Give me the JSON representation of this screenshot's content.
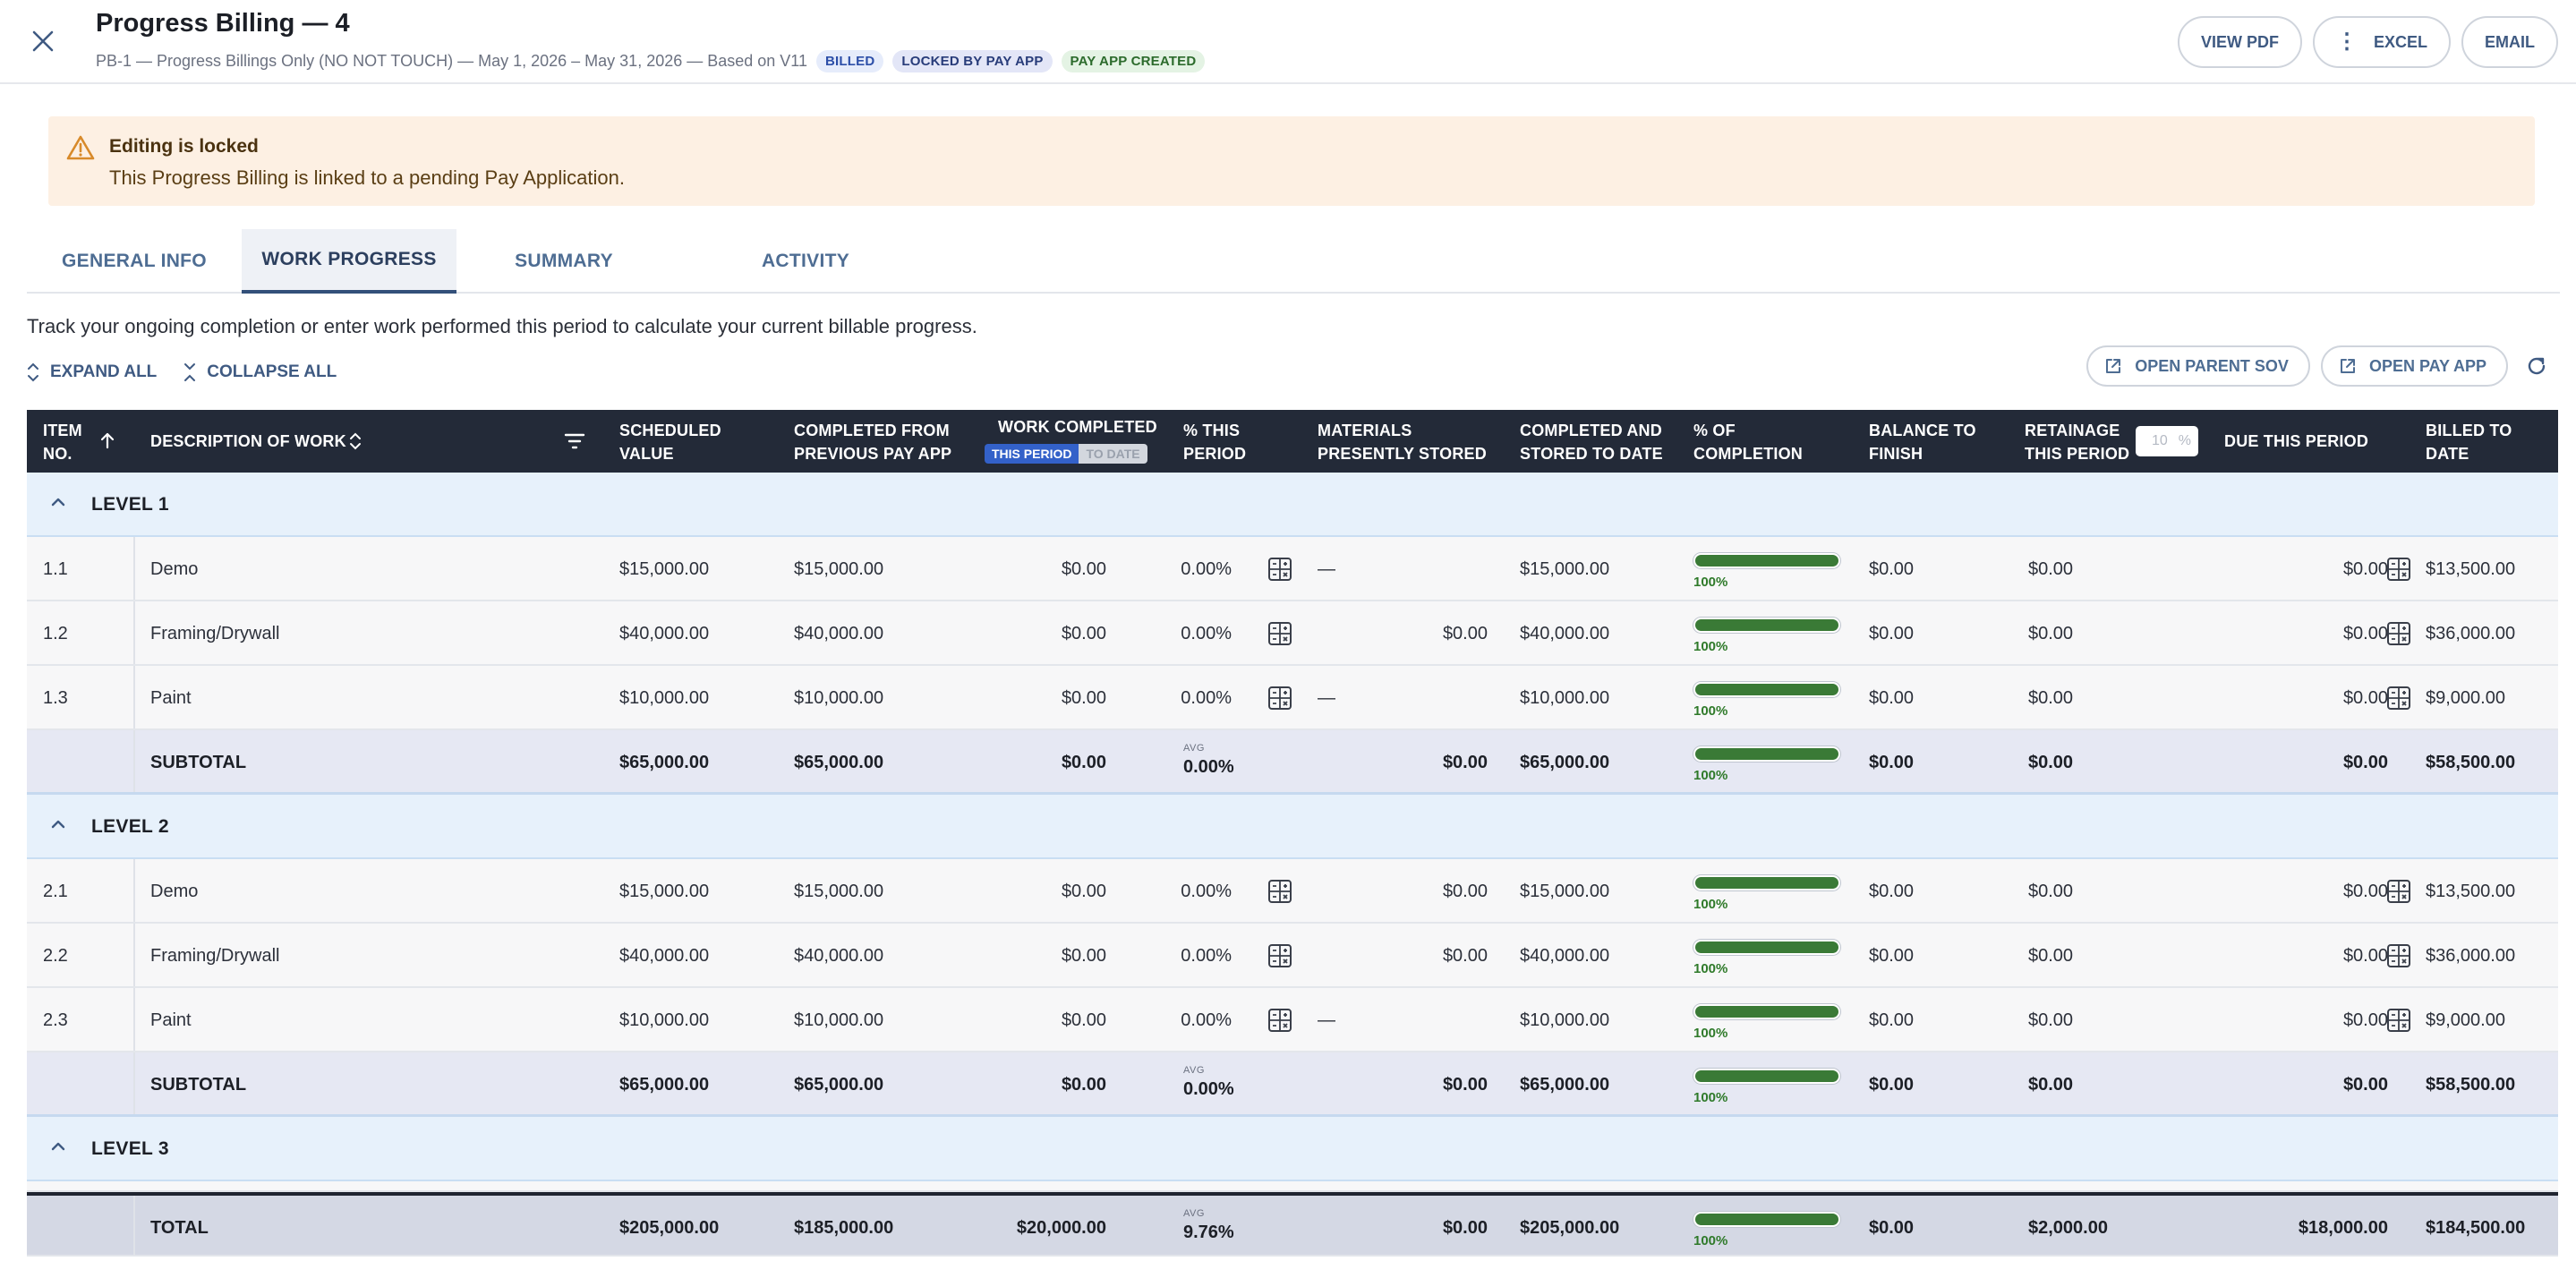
{
  "header": {
    "title": "Progress Billing — 4",
    "subtitle": "PB-1 — Progress Billings Only (NO NOT TOUCH) — May 1, 2026 – May 31, 2026 — Based on V11",
    "badges": [
      "BILLED",
      "LOCKED BY PAY APP",
      "PAY APP CREATED"
    ],
    "actions": {
      "view_pdf": "VIEW PDF",
      "excel": "EXCEL",
      "email": "EMAIL"
    }
  },
  "alert": {
    "title": "Editing is locked",
    "text": "This Progress Billing is linked to a pending Pay Application."
  },
  "tabs": [
    "GENERAL INFO",
    "WORK PROGRESS",
    "SUMMARY",
    "ACTIVITY"
  ],
  "active_tab": "WORK PROGRESS",
  "description": "Track your ongoing completion or enter work performed this period to calculate your current billable progress.",
  "controls": {
    "expand_all": "EXPAND ALL",
    "collapse_all": "COLLAPSE ALL",
    "open_parent_sov": "OPEN PARENT SOV",
    "open_pay_app": "OPEN PAY APP"
  },
  "columns": {
    "item": "ITEM NO.",
    "description": "DESCRIPTION OF WORK",
    "scheduled": "SCHEDULED VALUE",
    "completed_prev": "COMPLETED FROM PREVIOUS PAY APP",
    "work_completed": "WORK COMPLETED",
    "toggle_this": "THIS PERIOD",
    "toggle_to_date": "TO DATE",
    "pct_this": "% THIS PERIOD",
    "materials": "MATERIALS PRESENTLY STORED",
    "completed_stored": "COMPLETED AND STORED TO DATE",
    "pct_completion": "% OF COMPLETION",
    "balance": "BALANCE TO FINISH",
    "retainage": "RETAINAGE THIS PERIOD",
    "retainage_value": "10",
    "retainage_unit": "%",
    "due": "DUE THIS PERIOD",
    "billed": "BILLED TO DATE"
  },
  "levels": [
    {
      "name": "LEVEL 1",
      "rows": [
        {
          "item": "1.1",
          "desc": "Demo",
          "scheduled": "$15,000.00",
          "prev": "$15,000.00",
          "work": "$0.00",
          "pct": "0.00%",
          "materials": "—",
          "stored": "$15,000.00",
          "completion_pct": 100,
          "completion": "100%",
          "balance": "$0.00",
          "retainage": "$0.00",
          "due": "$0.00",
          "billed": "$13,500.00"
        },
        {
          "item": "1.2",
          "desc": "Framing/Drywall",
          "scheduled": "$40,000.00",
          "prev": "$40,000.00",
          "work": "$0.00",
          "pct": "0.00%",
          "materials": "$0.00",
          "stored": "$40,000.00",
          "completion_pct": 100,
          "completion": "100%",
          "balance": "$0.00",
          "retainage": "$0.00",
          "due": "$0.00",
          "billed": "$36,000.00"
        },
        {
          "item": "1.3",
          "desc": "Paint",
          "scheduled": "$10,000.00",
          "prev": "$10,000.00",
          "work": "$0.00",
          "pct": "0.00%",
          "materials": "—",
          "stored": "$10,000.00",
          "completion_pct": 100,
          "completion": "100%",
          "balance": "$0.00",
          "retainage": "$0.00",
          "due": "$0.00",
          "billed": "$9,000.00"
        }
      ],
      "subtotal": {
        "label": "SUBTOTAL",
        "scheduled": "$65,000.00",
        "prev": "$65,000.00",
        "work": "$0.00",
        "avg_label": "AVG",
        "pct": "0.00%",
        "materials": "$0.00",
        "stored": "$65,000.00",
        "completion_pct": 100,
        "completion": "100%",
        "balance": "$0.00",
        "retainage": "$0.00",
        "due": "$0.00",
        "billed": "$58,500.00"
      }
    },
    {
      "name": "LEVEL 2",
      "rows": [
        {
          "item": "2.1",
          "desc": "Demo",
          "scheduled": "$15,000.00",
          "prev": "$15,000.00",
          "work": "$0.00",
          "pct": "0.00%",
          "materials": "$0.00",
          "stored": "$15,000.00",
          "completion_pct": 100,
          "completion": "100%",
          "balance": "$0.00",
          "retainage": "$0.00",
          "due": "$0.00",
          "billed": "$13,500.00"
        },
        {
          "item": "2.2",
          "desc": "Framing/Drywall",
          "scheduled": "$40,000.00",
          "prev": "$40,000.00",
          "work": "$0.00",
          "pct": "0.00%",
          "materials": "$0.00",
          "stored": "$40,000.00",
          "completion_pct": 100,
          "completion": "100%",
          "balance": "$0.00",
          "retainage": "$0.00",
          "due": "$0.00",
          "billed": "$36,000.00"
        },
        {
          "item": "2.3",
          "desc": "Paint",
          "scheduled": "$10,000.00",
          "prev": "$10,000.00",
          "work": "$0.00",
          "pct": "0.00%",
          "materials": "—",
          "stored": "$10,000.00",
          "completion_pct": 100,
          "completion": "100%",
          "balance": "$0.00",
          "retainage": "$0.00",
          "due": "$0.00",
          "billed": "$9,000.00"
        }
      ],
      "subtotal": {
        "label": "SUBTOTAL",
        "scheduled": "$65,000.00",
        "prev": "$65,000.00",
        "work": "$0.00",
        "avg_label": "AVG",
        "pct": "0.00%",
        "materials": "$0.00",
        "stored": "$65,000.00",
        "completion_pct": 100,
        "completion": "100%",
        "balance": "$0.00",
        "retainage": "$0.00",
        "due": "$0.00",
        "billed": "$58,500.00"
      }
    },
    {
      "name": "LEVEL 3",
      "rows": [],
      "subtotal": null
    }
  ],
  "total": {
    "label": "TOTAL",
    "scheduled": "$205,000.00",
    "prev": "$185,000.00",
    "work": "$20,000.00",
    "avg_label": "AVG",
    "pct": "9.76%",
    "materials": "$0.00",
    "stored": "$205,000.00",
    "completion_pct": 100,
    "completion": "100%",
    "balance": "$0.00",
    "retainage": "$2,000.00",
    "due": "$18,000.00",
    "billed": "$184,500.00"
  },
  "colors": {
    "header_bg": "#232a38",
    "level_bg": "#e7f1fb",
    "subtotal_bg": "#e6e8f3",
    "total_bg": "#d4d8e4",
    "progress_green": "#3a7a36",
    "alert_bg": "#fdf0e3",
    "accent": "#3f5a82"
  },
  "icons": {
    "close": "close-icon",
    "warning": "warning-icon",
    "sort": "arrow-up-icon",
    "sort_toggle": "sort-icon",
    "filter": "filter-icon",
    "calculator": "calculator-icon",
    "external": "external-link-icon",
    "refresh": "refresh-icon",
    "chevron": "chevron-up-icon"
  }
}
